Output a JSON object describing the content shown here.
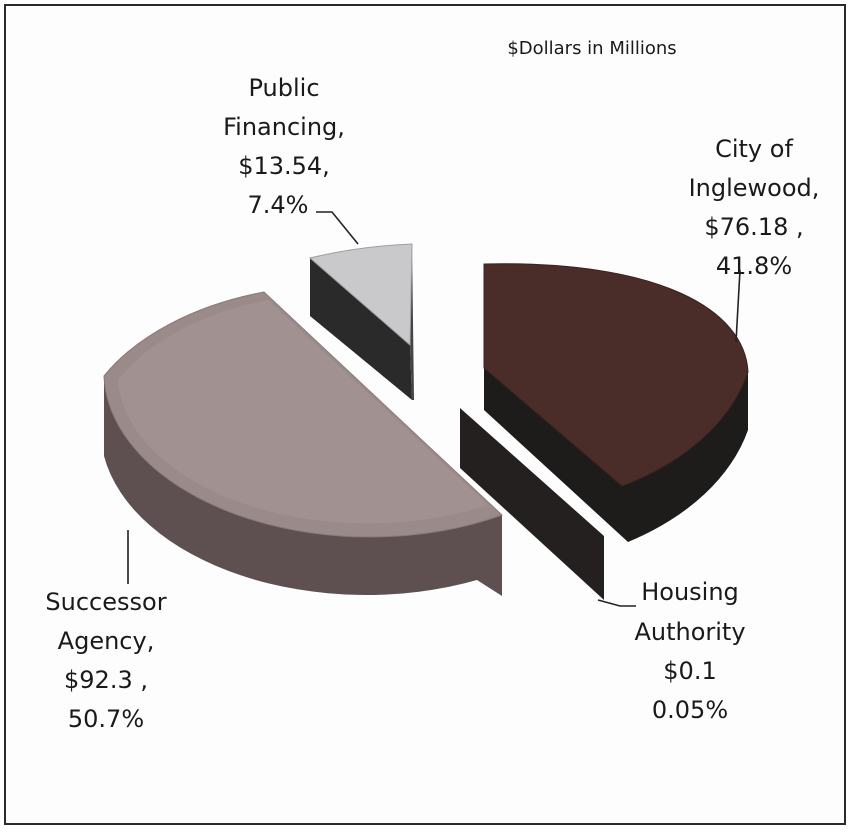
{
  "chart_data": {
    "type": "pie",
    "subtitle": "$Dollars in Millions",
    "slices": [
      {
        "name": "City of Inglewood",
        "value": 76.18,
        "percent": 41.8,
        "value_label": "$76.18 ,",
        "percent_label": "41.8%",
        "color": "#4a2c29"
      },
      {
        "name": "Housing Authority",
        "value": 0.1,
        "percent": 0.05,
        "value_label": "$0.1",
        "percent_label": "0.05%",
        "color": "#2a2625"
      },
      {
        "name": "Successor Agency",
        "value": 92.3,
        "percent": 50.7,
        "value_label": "$92.3 ,",
        "percent_label": "50.7%",
        "color": "#9a8a8a"
      },
      {
        "name": "Public Financing",
        "value": 13.54,
        "percent": 7.4,
        "value_label": "$13.54,",
        "percent_label": "7.4%",
        "color": "#c9c9cc"
      }
    ],
    "labels": {
      "city": [
        "City of",
        "Inglewood,",
        "$76.18 ,",
        "41.8%"
      ],
      "housing": [
        "Housing",
        "Authority",
        "$0.1",
        "0.05%"
      ],
      "successor": [
        "Successor",
        "Agency,",
        "$92.3 ,",
        "50.7%"
      ],
      "public": [
        "Public",
        "Financing,",
        "$13.54,",
        "7.4%"
      ]
    }
  }
}
